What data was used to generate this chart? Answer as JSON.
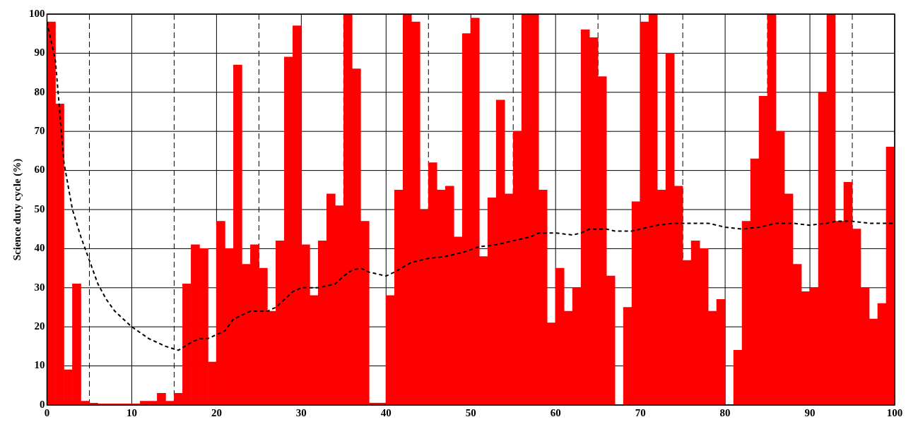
{
  "chart_data": {
    "type": "histogram",
    "ylabel": "Science duty cycle (%)",
    "bins": [
      0,
      1,
      2,
      3,
      4,
      5,
      6,
      7,
      8,
      9,
      10,
      11,
      12,
      13,
      14,
      15,
      16,
      17,
      18,
      19,
      20,
      21,
      22,
      23,
      24,
      25,
      26,
      27,
      28,
      29,
      30,
      31,
      32,
      33,
      34,
      35,
      36,
      37,
      38,
      39,
      40,
      41,
      42,
      43,
      44,
      45,
      46,
      47,
      48,
      49,
      50,
      51,
      52,
      53,
      54,
      55,
      56,
      57,
      58,
      59,
      60,
      61,
      62,
      63,
      64,
      65,
      66,
      67,
      68,
      69,
      70,
      71,
      72,
      73,
      74,
      75,
      76,
      77,
      78,
      79,
      80,
      81,
      82,
      83,
      84,
      85,
      86,
      87,
      88,
      89,
      90,
      91,
      92,
      93,
      94,
      95,
      96,
      97,
      98,
      99,
      100
    ],
    "series": [
      {
        "color": "#ff0000",
        "values": [
          98,
          77,
          9,
          31,
          1,
          0.5,
          0.3,
          0.3,
          0.3,
          0.3,
          0.3,
          1,
          1,
          3,
          1,
          3,
          31,
          41,
          40,
          11,
          47,
          40,
          87,
          36,
          41,
          35,
          24,
          42,
          89,
          97,
          41,
          28,
          42,
          54,
          51,
          100,
          86,
          47,
          0.5,
          0.5,
          28,
          55,
          100,
          98,
          50,
          62,
          55,
          56,
          43,
          95,
          99,
          38,
          53,
          78,
          54,
          70,
          100,
          100,
          55,
          21,
          35,
          24,
          30,
          96,
          94,
          84,
          33,
          0,
          25,
          52,
          98,
          100,
          55,
          90,
          56,
          37,
          42,
          40,
          24,
          27,
          0,
          14,
          47,
          63,
          79,
          100,
          70,
          54,
          36,
          29,
          30,
          80,
          100,
          47,
          57,
          45,
          30,
          22,
          26,
          66
        ]
      },
      {
        "type": "line",
        "color": "#000000",
        "line_style": "dashed",
        "x": [
          0,
          1,
          1.5,
          2,
          3,
          4,
          5,
          6,
          7,
          8,
          10,
          12,
          14,
          15.5,
          17,
          18,
          19,
          20,
          21,
          22,
          24,
          26,
          27,
          29,
          30,
          32,
          34,
          35,
          36,
          37,
          38,
          40,
          41,
          43,
          45,
          47,
          49,
          51,
          53,
          55,
          57,
          58,
          60,
          62,
          63,
          64,
          66,
          67,
          69,
          70,
          72,
          74,
          76,
          78,
          80,
          82,
          84,
          86,
          88,
          90,
          92,
          93,
          95,
          97,
          100
        ],
        "values": [
          98,
          88,
          75,
          62,
          50,
          43,
          37,
          31,
          27,
          24,
          20,
          17,
          15,
          14,
          16,
          17,
          17,
          18,
          19,
          22,
          24,
          24,
          25,
          29,
          30,
          30,
          31,
          33,
          34.5,
          35,
          34,
          33,
          34,
          36.5,
          37.5,
          38,
          39,
          40.5,
          41,
          42,
          43,
          44,
          44,
          43.5,
          44,
          45,
          45,
          44.5,
          44.5,
          45,
          46,
          46.5,
          46.5,
          46.5,
          45.5,
          45,
          45.5,
          46.5,
          46.5,
          46,
          46.5,
          47,
          47,
          46.5,
          46.5
        ]
      }
    ],
    "xlim": [
      0,
      100
    ],
    "xticks": [
      0,
      {
        "value": 5,
        "label": null
      },
      10,
      {
        "value": 15,
        "label": null
      },
      20,
      {
        "value": 25,
        "label": null
      },
      30,
      {
        "value": 35,
        "label": null
      },
      40,
      {
        "value": 45,
        "label": null
      },
      50,
      {
        "value": 55,
        "label": null
      },
      60,
      {
        "value": 65,
        "label": null
      },
      70,
      {
        "value": 75,
        "label": null
      },
      80,
      {
        "value": 85,
        "label": null
      },
      90,
      {
        "value": 95,
        "label": null
      },
      100
    ],
    "ylim": [
      0,
      100
    ],
    "yticks": [
      0,
      10,
      20,
      30,
      40,
      50,
      60,
      70,
      80,
      90,
      100
    ],
    "grid": true,
    "legend": false
  }
}
